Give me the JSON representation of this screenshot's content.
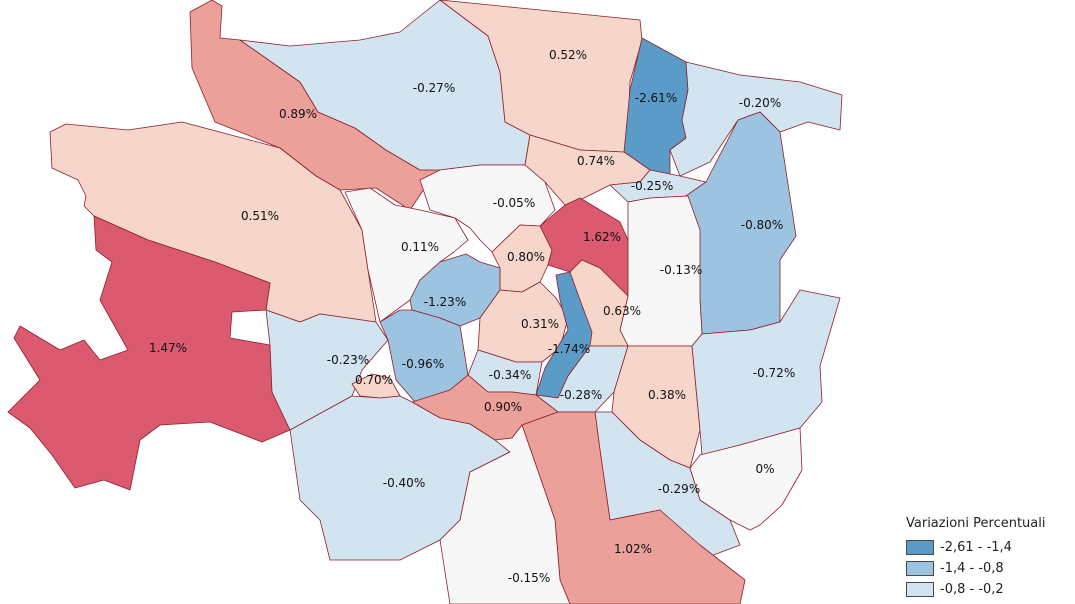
{
  "colors": {
    "border": "#8f1f2a",
    "class_strong_neg": "#5b9bc8",
    "class_mid_neg": "#9cc3e0",
    "class_light_neg": "#d2e4f0",
    "class_neutral": "#f7f7f7",
    "class_light_pos": "#f6d6ca",
    "class_mid_pos": "#eba09a",
    "class_strong_pos": "#db5a70"
  },
  "legend": {
    "title": "Variazioni Percentuali",
    "items": [
      {
        "label": "-2,61 - -1,4",
        "color_key": "class_strong_neg"
      },
      {
        "label": "-1,4 - -0,8",
        "color_key": "class_mid_neg"
      },
      {
        "label": "-0,8 - -0,2",
        "color_key": "class_light_neg"
      }
    ]
  },
  "zones": [
    {
      "id": "z-nw-089",
      "label": "0.89%",
      "class": "class_mid_pos"
    },
    {
      "id": "z-n-027",
      "label": "-0.27%",
      "class": "class_light_neg"
    },
    {
      "id": "z-n-052",
      "label": "0.52%",
      "class": "class_light_pos"
    },
    {
      "id": "z-ne-261",
      "label": "-2.61%",
      "class": "class_strong_neg"
    },
    {
      "id": "z-ne-020",
      "label": "-0.20%",
      "class": "class_light_neg"
    },
    {
      "id": "z-w-051",
      "label": "0.51%",
      "class": "class_light_pos"
    },
    {
      "id": "z-n-074",
      "label": "0.74%",
      "class": "class_light_pos"
    },
    {
      "id": "z-n-025",
      "label": "-0.25%",
      "class": "class_light_neg"
    },
    {
      "id": "z-e-080",
      "label": "-0.80%",
      "class": "class_mid_neg"
    },
    {
      "id": "z-n-005",
      "label": "-0.05%",
      "class": "class_neutral"
    },
    {
      "id": "z-nw-011",
      "label": "0.11%",
      "class": "class_neutral"
    },
    {
      "id": "z-c-080",
      "label": "0.80%",
      "class": "class_light_pos"
    },
    {
      "id": "z-c-162",
      "label": "1.62%",
      "class": "class_strong_pos"
    },
    {
      "id": "z-e-013",
      "label": "-0.13%",
      "class": "class_neutral"
    },
    {
      "id": "z-w-147",
      "label": "1.47%",
      "class": "class_strong_pos"
    },
    {
      "id": "z-c-123",
      "label": "-1.23%",
      "class": "class_mid_neg"
    },
    {
      "id": "z-c-031",
      "label": "0.31%",
      "class": "class_light_pos"
    },
    {
      "id": "z-c-063",
      "label": "0.63%",
      "class": "class_light_pos"
    },
    {
      "id": "z-c-174",
      "label": "-1.74%",
      "class": "class_strong_neg"
    },
    {
      "id": "z-w-023",
      "label": "-0.23%",
      "class": "class_light_neg"
    },
    {
      "id": "z-w-096",
      "label": "-0.96%",
      "class": "class_mid_neg"
    },
    {
      "id": "z-w-070",
      "label": "0.70%",
      "class": "class_light_pos"
    },
    {
      "id": "z-c-034",
      "label": "-0.34%",
      "class": "class_light_neg"
    },
    {
      "id": "z-s-090",
      "label": "0.90%",
      "class": "class_mid_pos"
    },
    {
      "id": "z-s-028",
      "label": "-0.28%",
      "class": "class_light_neg"
    },
    {
      "id": "z-se-038",
      "label": "0.38%",
      "class": "class_light_pos"
    },
    {
      "id": "z-e-072",
      "label": "-0.72%",
      "class": "class_light_neg"
    },
    {
      "id": "z-sw-040",
      "label": "-0.40%",
      "class": "class_light_neg"
    },
    {
      "id": "z-se-029",
      "label": "-0.29%",
      "class": "class_light_neg"
    },
    {
      "id": "z-se-0",
      "label": "0%",
      "class": "class_neutral"
    },
    {
      "id": "z-s-102",
      "label": "1.02%",
      "class": "class_mid_pos"
    },
    {
      "id": "z-s-015",
      "label": "-0.15%",
      "class": "class_neutral"
    }
  ]
}
